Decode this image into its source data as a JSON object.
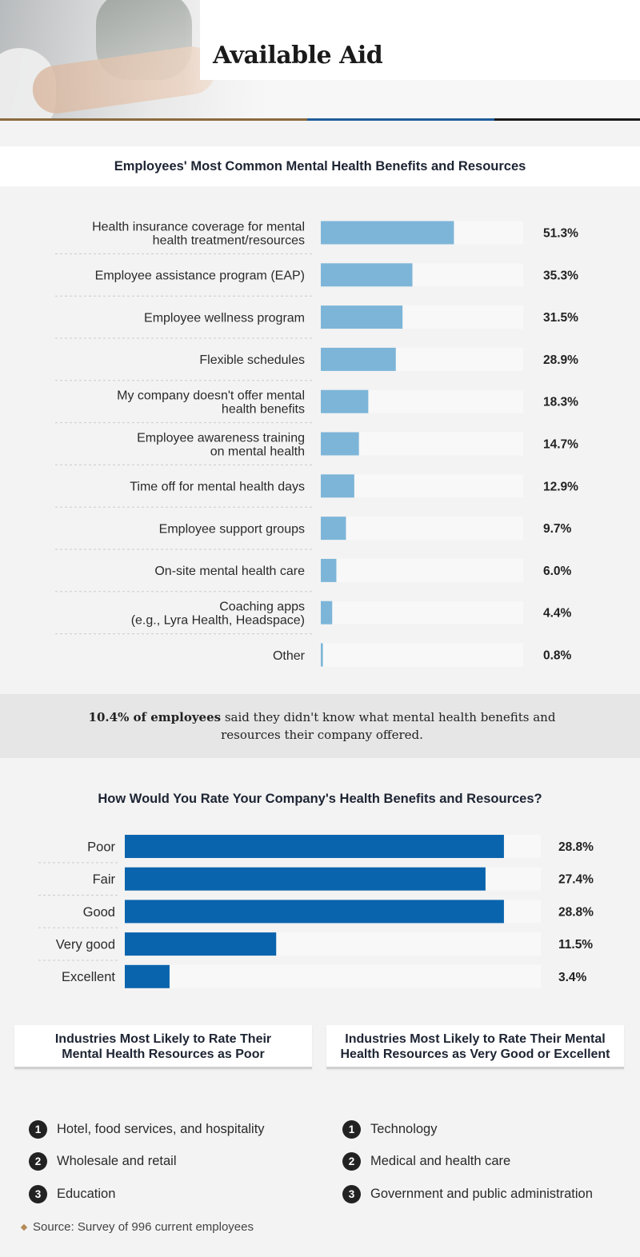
{
  "header": {
    "title": "Available Aid",
    "rule_colors": [
      "#8a6a3e",
      "#1f5c99",
      "#1a1a1a"
    ]
  },
  "colors": {
    "chart1_bar": "#7db5d8",
    "chart2_bar": "#0a64ad",
    "track": "#f8f8f8",
    "callout_bg": "#e6e6e6",
    "accent": "#b58a57"
  },
  "callout": {
    "bold": "10.4% of employees",
    "rest": " said they didn't know what mental health benefits and resources their company offered."
  },
  "chart_data": [
    {
      "type": "bar",
      "orientation": "horizontal",
      "title": "Employees' Most Common Mental Health Benefits and Resources",
      "categories": [
        "Health insurance coverage for mental\nhealth treatment/resources",
        "Employee assistance program (EAP)",
        "Employee wellness program",
        "Flexible schedules",
        "My company doesn't offer mental\nhealth benefits",
        "Employee awareness training\non mental health",
        "Time off for mental health days",
        "Employee support groups",
        "On-site mental health care",
        "Coaching apps\n(e.g., Lyra Health, Headspace)",
        "Other"
      ],
      "values": [
        51.3,
        35.3,
        31.5,
        28.9,
        18.3,
        14.7,
        12.9,
        9.7,
        6.0,
        4.4,
        0.8
      ],
      "value_labels": [
        "51.3%",
        "35.3%",
        "31.5%",
        "28.9%",
        "18.3%",
        "14.7%",
        "12.9%",
        "9.7%",
        "6.0%",
        "4.4%",
        "0.8%"
      ],
      "xlim": [
        0,
        78
      ],
      "grid": false
    },
    {
      "type": "bar",
      "orientation": "horizontal",
      "title": "How Would You Rate Your Company's Health Benefits and Resources?",
      "categories": [
        "Poor",
        "Fair",
        "Good",
        "Very good",
        "Excellent"
      ],
      "values": [
        28.8,
        27.4,
        28.8,
        11.5,
        3.4
      ],
      "value_labels": [
        "28.8%",
        "27.4%",
        "28.8%",
        "11.5%",
        "3.4%"
      ],
      "xlim": [
        0,
        31.6
      ],
      "grid": false
    }
  ],
  "industries": {
    "poor": {
      "title": "Industries Most Likely to Rate Their\nMental Health Resources as Poor",
      "items": [
        {
          "num": "1",
          "label": "Hotel, food services, and hospitality"
        },
        {
          "num": "2",
          "label": "Wholesale and retail"
        },
        {
          "num": "3",
          "label": "Education"
        }
      ]
    },
    "good": {
      "title": "Industries Most Likely to Rate Their Mental\nHealth Resources as Very Good or Excellent",
      "items": [
        {
          "num": "1",
          "label": "Technology"
        },
        {
          "num": "2",
          "label": "Medical and health care"
        },
        {
          "num": "3",
          "label": "Government and public administration"
        }
      ]
    }
  },
  "source": "Source: Survey of 996 current employees"
}
